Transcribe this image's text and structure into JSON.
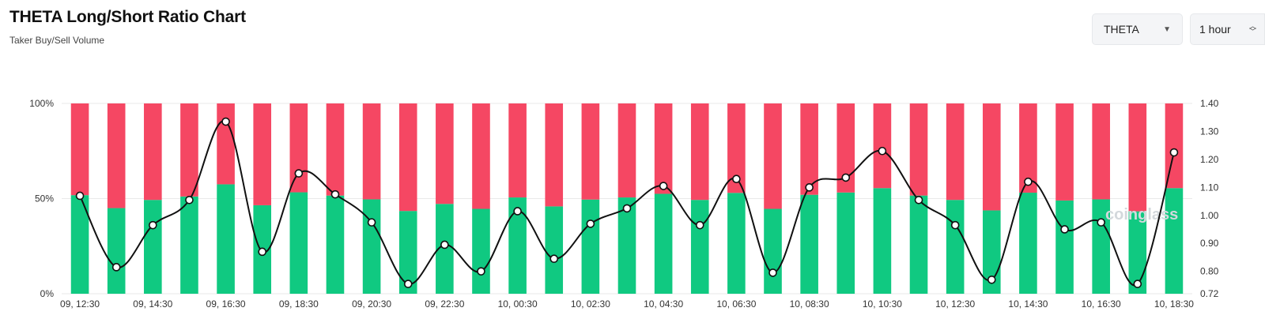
{
  "header": {
    "title": "THETA Long/Short Ratio Chart",
    "subtitle": "Taker Buy/Sell Volume"
  },
  "controls": {
    "coin": {
      "value": "THETA",
      "icon": "caret-down-icon"
    },
    "interval": {
      "value": "1 hour",
      "icon": "up-down-chevron-icon"
    }
  },
  "watermark": "coinglass",
  "colors": {
    "long": "#10c981",
    "short": "#f54763",
    "ratio_line": "#111111",
    "grid": "#e9e9e9"
  },
  "chart_data": {
    "type": "bar",
    "stacked": true,
    "title": "",
    "xlabel": "",
    "ylabel": "",
    "grid": true,
    "legend": "none",
    "y_left": {
      "range": [
        0,
        100
      ],
      "unit": "%",
      "tick_labels": [
        "100%",
        "50%",
        "0%"
      ],
      "ticks": [
        100,
        50,
        0
      ]
    },
    "y_right": {
      "range": [
        0.72,
        1.4
      ],
      "tick_labels": [
        "1.40",
        "1.30",
        "1.20",
        "1.10",
        "1.00",
        "0.90",
        "0.80",
        "0.72"
      ],
      "ticks": [
        1.4,
        1.3,
        1.2,
        1.1,
        1.0,
        0.9,
        0.8,
        0.72
      ]
    },
    "x_tick_labels": [
      "09, 12:30",
      "09, 14:30",
      "09, 16:30",
      "09, 18:30",
      "09, 20:30",
      "09, 22:30",
      "10, 00:30",
      "10, 02:30",
      "10, 04:30",
      "10, 06:30",
      "10, 08:30",
      "10, 10:30",
      "10, 12:30",
      "10, 14:30",
      "10, 16:30",
      "10, 18:30"
    ],
    "series": [
      {
        "axis": "left",
        "stack": "volume",
        "color": "#10c981",
        "values": [
          51.8,
          45.0,
          49.3,
          51.1,
          57.5,
          46.5,
          53.3,
          51.6,
          49.6,
          43.5,
          47.2,
          44.6,
          50.6,
          45.9,
          49.5,
          50.6,
          52.5,
          49.3,
          53.0,
          44.6,
          52.0,
          53.2,
          55.5,
          51.6,
          49.3,
          43.8,
          53.1,
          49.0,
          49.6,
          43.3,
          55.5
        ]
      },
      {
        "axis": "left",
        "stack": "volume",
        "color": "#f54763",
        "values": [
          48.2,
          55.0,
          50.7,
          48.9,
          42.5,
          53.5,
          46.7,
          48.4,
          50.4,
          56.5,
          52.8,
          55.4,
          49.4,
          54.1,
          50.5,
          49.4,
          47.5,
          50.7,
          47.0,
          55.4,
          48.0,
          46.8,
          44.5,
          48.4,
          50.7,
          56.2,
          46.9,
          51.0,
          50.4,
          56.7,
          44.5
        ]
      },
      {
        "axis": "right",
        "type": "line",
        "color": "#111111",
        "values": [
          1.07,
          0.815,
          0.965,
          1.055,
          1.335,
          0.87,
          1.15,
          1.075,
          0.975,
          0.755,
          0.895,
          0.8,
          1.015,
          0.845,
          0.97,
          1.025,
          1.105,
          0.965,
          1.13,
          0.795,
          1.1,
          1.135,
          1.23,
          1.055,
          0.965,
          0.77,
          1.12,
          0.95,
          0.975,
          0.755,
          1.225
        ]
      }
    ]
  }
}
